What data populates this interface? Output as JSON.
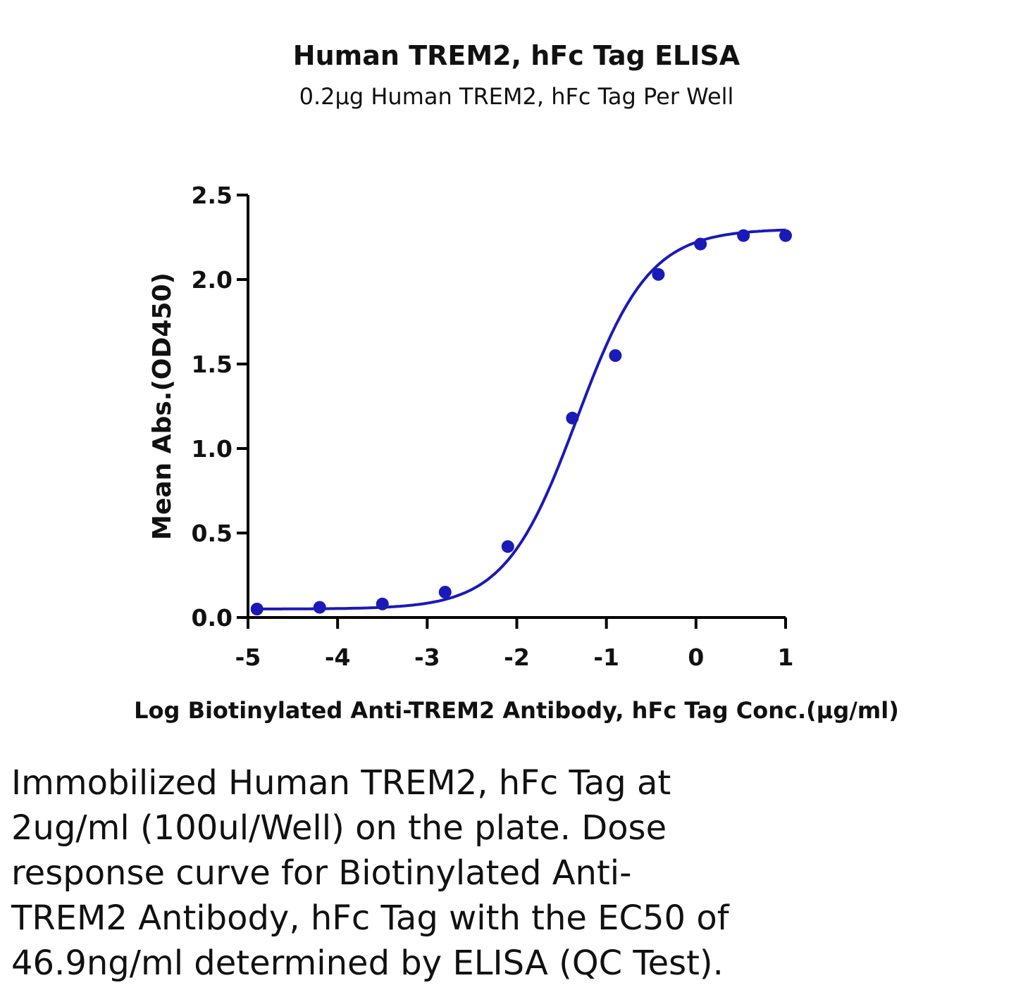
{
  "chart_data": {
    "type": "scatter",
    "title": "Human TREM2, hFc Tag ELISA",
    "subtitle": "0.2μg Human TREM2, hFc Tag Per Well",
    "xlabel": "Log Biotinylated Anti-TREM2 Antibody, hFc Tag Conc.(μg/ml)",
    "ylabel": "Mean Abs.(OD450)",
    "xlim": [
      -5,
      1
    ],
    "ylim": [
      0,
      2.5
    ],
    "xticks": [
      -5,
      -4,
      -3,
      -2,
      -1,
      0,
      1
    ],
    "xtick_labels": [
      "-5",
      "-4",
      "-3",
      "-2",
      "-1",
      "0",
      "1"
    ],
    "yticks": [
      0,
      0.5,
      1.0,
      1.5,
      2.0,
      2.5
    ],
    "ytick_labels": [
      "0.0",
      "0.5",
      "1.0",
      "1.5",
      "2.0",
      "2.5"
    ],
    "grid": false,
    "color": "#1a1ab8",
    "series": [
      {
        "points": [
          {
            "x": -4.9,
            "y": 0.05
          },
          {
            "x": -4.2,
            "y": 0.06
          },
          {
            "x": -3.5,
            "y": 0.08
          },
          {
            "x": -2.8,
            "y": 0.15
          },
          {
            "x": -2.1,
            "y": 0.42
          },
          {
            "x": -1.38,
            "y": 1.18
          },
          {
            "x": -0.9,
            "y": 1.55
          },
          {
            "x": -0.42,
            "y": 2.03
          },
          {
            "x": 0.05,
            "y": 2.21
          },
          {
            "x": 0.53,
            "y": 2.26
          },
          {
            "x": 1.0,
            "y": 2.26
          }
        ],
        "fit": {
          "model": "4PL",
          "bottom": 0.05,
          "top": 2.3,
          "log_ec50": -1.33,
          "hill": 1.08
        }
      }
    ]
  },
  "caption": {
    "lines": [
      "Immobilized Human TREM2, hFc Tag at",
      "2ug/ml (100ul/Well) on the plate. Dose",
      "response curve for Biotinylated Anti-",
      "TREM2 Antibody, hFc Tag with the EC50 of",
      "46.9ng/ml determined by ELISA (QC Test)."
    ]
  }
}
